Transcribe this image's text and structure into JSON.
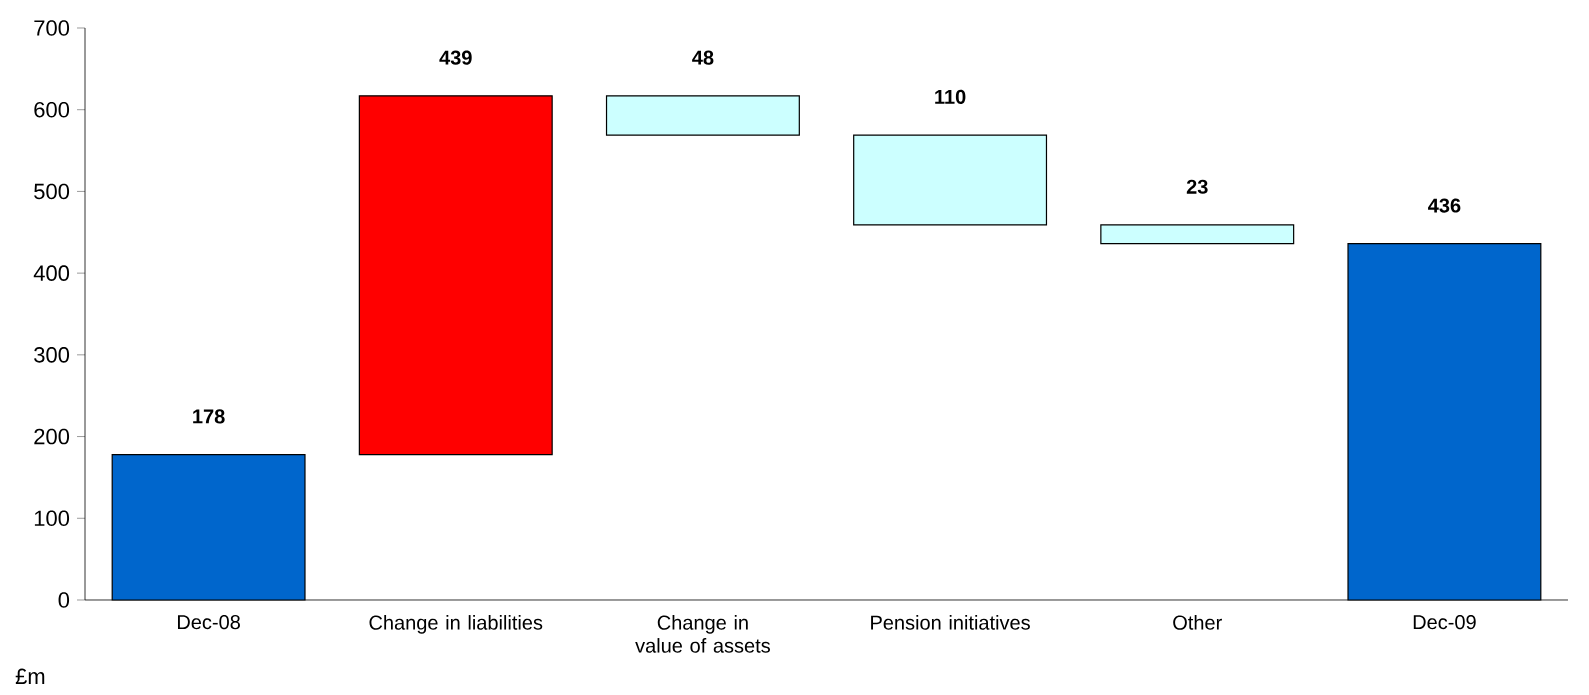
{
  "chart_data": {
    "type": "bar",
    "categories": [
      "Dec-08",
      "Change in liabilities",
      "Change in value of assets",
      "Pension initiatives",
      "Other",
      "Dec-09"
    ],
    "values": [
      178,
      439,
      48,
      110,
      23,
      436
    ],
    "base": [
      0,
      178,
      569,
      459,
      436,
      0
    ],
    "colors": [
      "#0066cc",
      "#ff0000",
      "#ccffff",
      "#ccffff",
      "#ccffff",
      "#0066cc"
    ],
    "ylim": [
      0,
      700
    ],
    "yticks": [
      0,
      100,
      200,
      300,
      400,
      500,
      600,
      700
    ],
    "data_labels": true,
    "annotations": [
      "£m"
    ]
  }
}
